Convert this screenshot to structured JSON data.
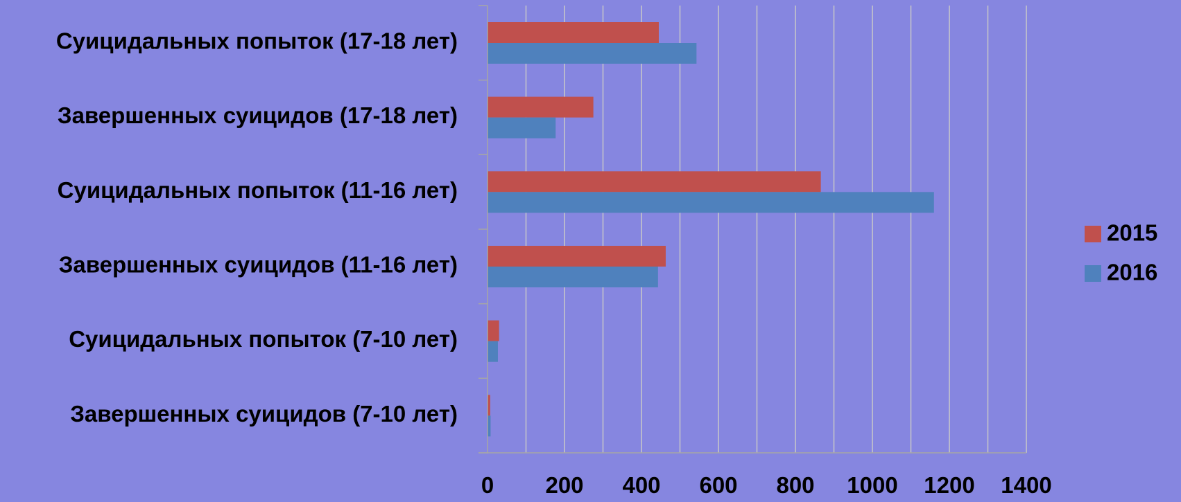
{
  "chart_data": {
    "type": "bar",
    "orientation": "horizontal",
    "categories": [
      "Суицидальных попыток (17-18 лет)",
      "Завершенных суицидов (17-18 лет)",
      "Суицидальных попыток (11-16 лет)",
      "Завершенных суицидов (11-16 лет)",
      "Суицидальных попыток (7-10 лет)",
      "Завершенных суицидов (7-10 лет)"
    ],
    "series": [
      {
        "name": "2015",
        "color": "#c0504d",
        "values": [
          445,
          275,
          866,
          463,
          30,
          7
        ]
      },
      {
        "name": "2016",
        "color": "#4f81bd",
        "values": [
          543,
          177,
          1160,
          443,
          27,
          8
        ]
      }
    ],
    "xlim": [
      0,
      1400
    ],
    "xticks": [
      0,
      200,
      400,
      600,
      800,
      1000,
      1200,
      1400
    ],
    "title": "",
    "xlabel": "",
    "ylabel": "",
    "grid": true,
    "legend_position": "right",
    "colors": {
      "background": "#8686e0",
      "gridline": "#c8c8c8",
      "axis": "#a6a6a6",
      "text": "#000000"
    }
  }
}
